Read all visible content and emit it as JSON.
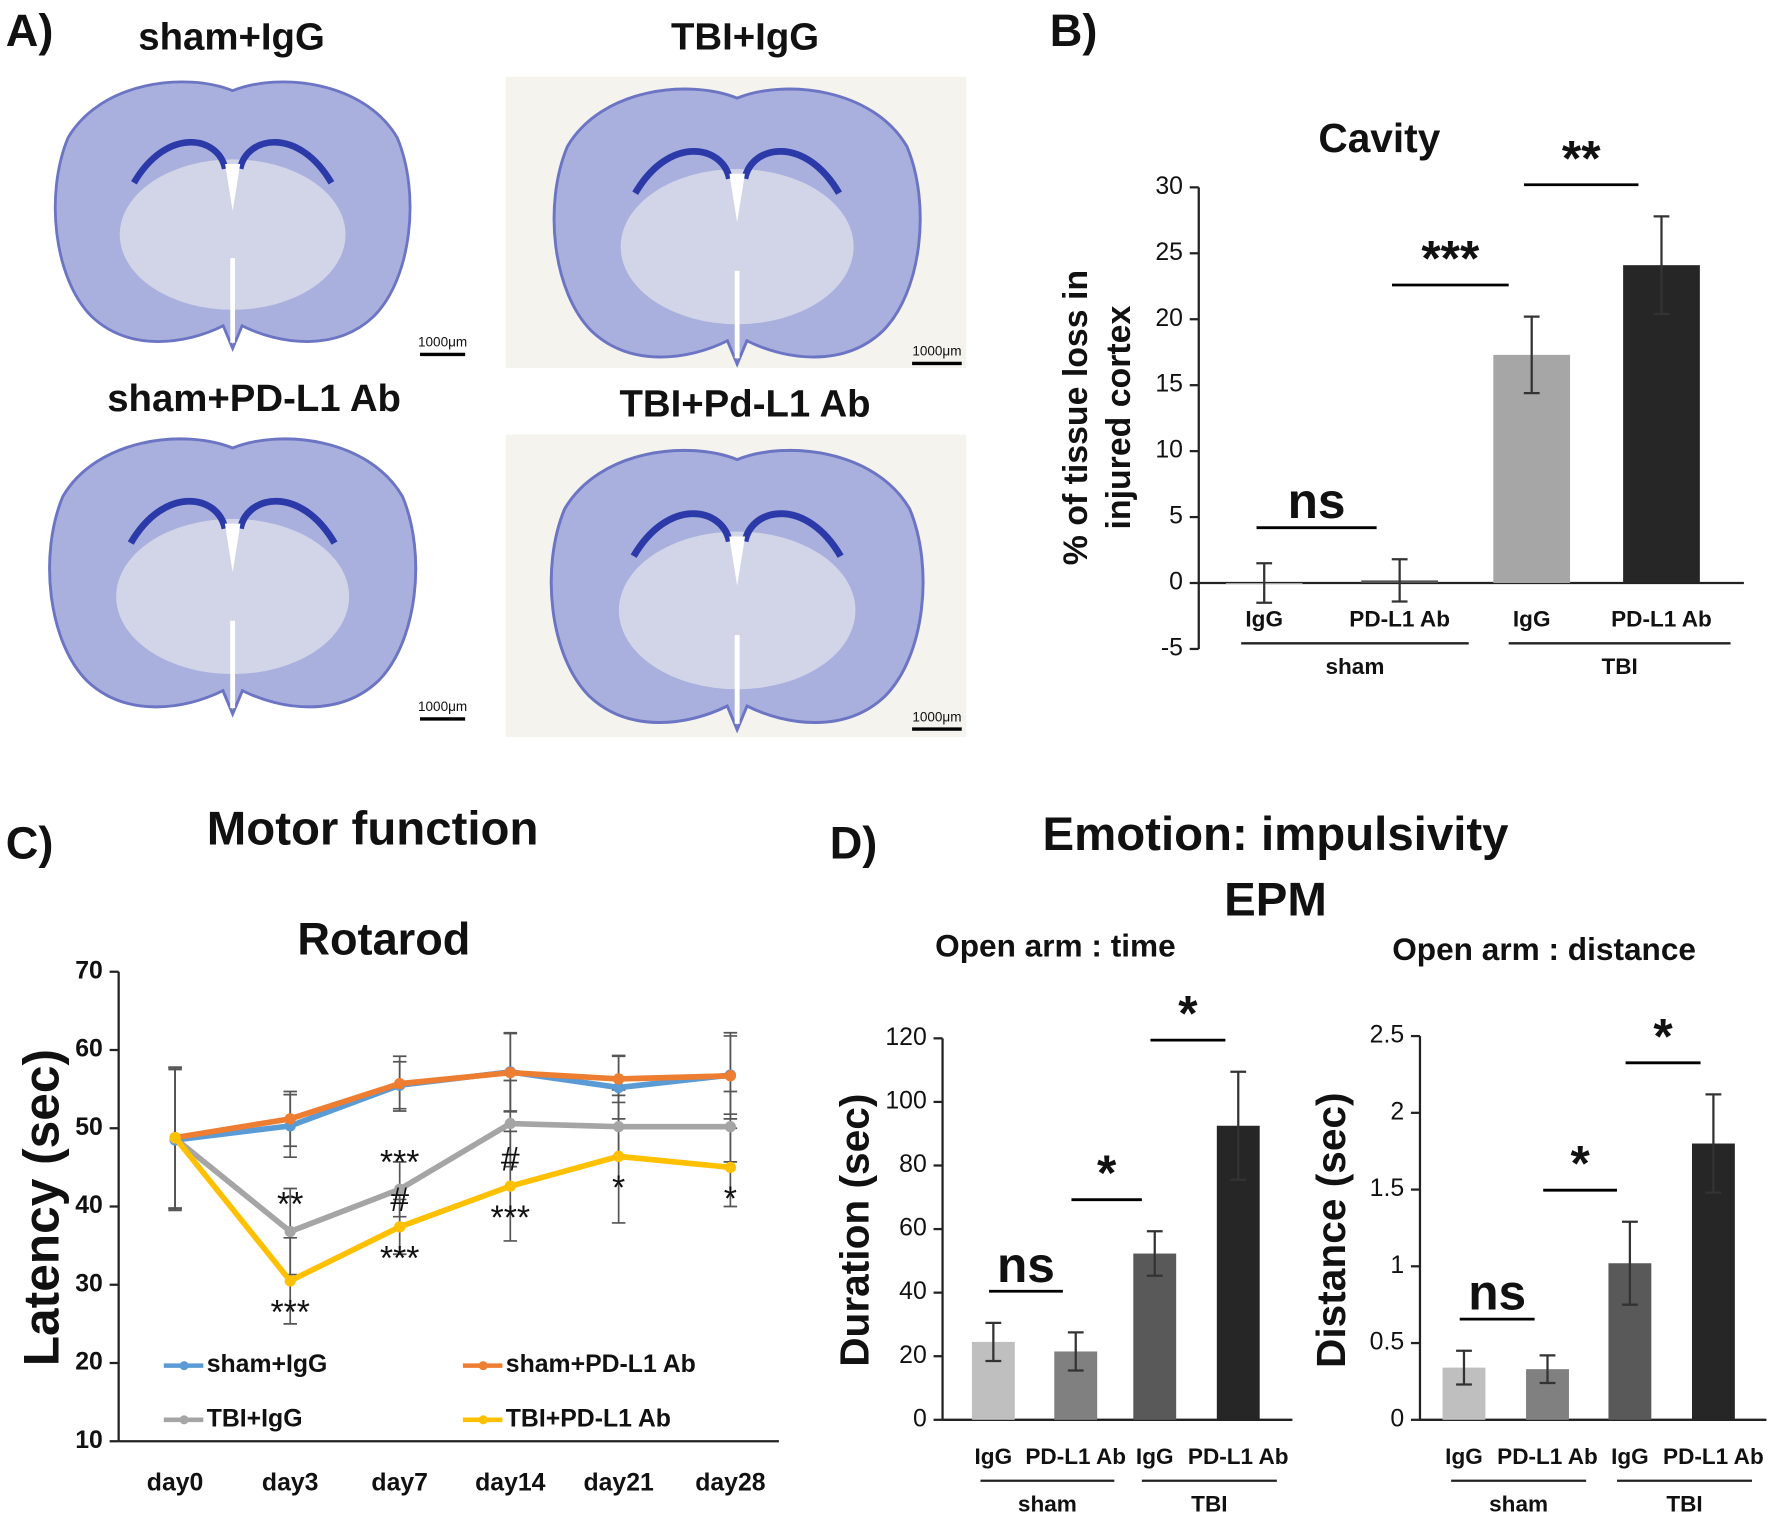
{
  "panel_a": {
    "label": "A)",
    "images": [
      {
        "title": "sham+IgG",
        "scale_bar": "1000μm"
      },
      {
        "title": "TBI+IgG",
        "scale_bar": "1000μm"
      },
      {
        "title": "sham+PD-L1 Ab",
        "scale_bar": "1000μm"
      },
      {
        "title": "TBI+Pd-L1 Ab",
        "scale_bar": "1000μm"
      }
    ]
  },
  "panel_d": {
    "label": "D)",
    "title": "Emotion: impulsivity",
    "subtitle": "EPM"
  },
  "chart_data": [
    {
      "type": "bar",
      "panel_label": "B)",
      "title": "Cavity",
      "ylabel": [
        "% of tissue loss in",
        "injured cortex"
      ],
      "groups": [
        {
          "name": "sham",
          "categories": [
            "IgG",
            "PD-L1 Ab"
          ]
        },
        {
          "name": "TBI",
          "categories": [
            "IgG",
            "PD-L1 Ab"
          ]
        }
      ],
      "values": [
        0,
        0.2,
        17.3,
        24.1
      ],
      "errors": [
        1.5,
        1.6,
        2.9,
        3.7
      ],
      "colors": [
        "#ffffff",
        "#555555",
        "#a6a6a6",
        "#262626"
      ],
      "comparisons": [
        "ns",
        "***",
        "**"
      ],
      "ylim": [
        -5,
        30
      ],
      "yticks": [
        -5,
        0,
        5,
        10,
        15,
        20,
        25,
        30
      ]
    },
    {
      "type": "line",
      "panel_label": "C)",
      "panel_title": "Motor function",
      "title": "Rotarod",
      "ylabel": "Latency (sec)",
      "categories": [
        "day0",
        "day3",
        "day7",
        "day14",
        "day21",
        "day28"
      ],
      "series": [
        {
          "name": "sham+IgG",
          "color": "#5b9bd5",
          "values": [
            48.5,
            50.3,
            55.5,
            57.2,
            55.2,
            56.8
          ],
          "errors": [
            9,
            4,
            3,
            5,
            4,
            5
          ]
        },
        {
          "name": "sham+PD-L1 Ab",
          "color": "#ed7d31",
          "values": [
            48.8,
            51.2,
            55.7,
            57.1,
            56.3,
            56.7
          ],
          "errors": [
            9,
            3.5,
            3.5,
            5,
            3,
            5.5
          ]
        },
        {
          "name": "TBI+IgG",
          "color": "#a5a5a5",
          "values": [
            48.7,
            36.8,
            42.2,
            50.6,
            50.2,
            50.2
          ],
          "errors": [
            9,
            5.5,
            3.5,
            5.5,
            4,
            4.5
          ],
          "marks_above": [
            null,
            "**",
            "***",
            null,
            null,
            null
          ]
        },
        {
          "name": "TBI+PD-L1 Ab",
          "color": "#ffc000",
          "values": [
            48.8,
            30.5,
            37.4,
            42.6,
            46.4,
            45.0
          ],
          "errors": [
            9,
            5.5,
            3.5,
            7,
            8.5,
            5
          ],
          "marks_above": [
            null,
            null,
            "#",
            "#",
            null,
            null
          ],
          "marks_below": [
            null,
            "***",
            "***",
            "***",
            "*",
            "*"
          ]
        }
      ],
      "legend": "lower left",
      "ylim": [
        10,
        70
      ],
      "yticks": [
        10,
        20,
        30,
        40,
        50,
        60,
        70
      ]
    },
    {
      "type": "bar",
      "title": "Open arm : time",
      "ylabel": "Duration (sec)",
      "groups": [
        {
          "name": "sham",
          "categories": [
            "IgG",
            "PD-L1 Ab"
          ]
        },
        {
          "name": "TBI",
          "categories": [
            "IgG",
            "PD-L1 Ab"
          ]
        }
      ],
      "values": [
        24.5,
        21.5,
        52.3,
        92.5
      ],
      "errors": [
        6,
        6,
        7,
        17
      ],
      "colors": [
        "#bfbfbf",
        "#808080",
        "#595959",
        "#262626"
      ],
      "comparisons": [
        "ns",
        "*",
        "*"
      ],
      "ylim": [
        0,
        120
      ],
      "yticks": [
        0,
        20,
        40,
        60,
        80,
        100,
        120
      ]
    },
    {
      "type": "bar",
      "title": "Open arm : distance",
      "ylabel": "Distance (sec)",
      "groups": [
        {
          "name": "sham",
          "categories": [
            "IgG",
            "PD-L1 Ab"
          ]
        },
        {
          "name": "TBI",
          "categories": [
            "IgG",
            "PD-L1 Ab"
          ]
        }
      ],
      "values": [
        0.34,
        0.33,
        1.02,
        1.8
      ],
      "errors": [
        0.11,
        0.09,
        0.27,
        0.32
      ],
      "colors": [
        "#bfbfbf",
        "#808080",
        "#595959",
        "#262626"
      ],
      "comparisons": [
        "ns",
        "*",
        "*"
      ],
      "ylim": [
        0,
        2.5
      ],
      "yticks": [
        0,
        0.5,
        1,
        1.5,
        2,
        2.5
      ]
    }
  ]
}
